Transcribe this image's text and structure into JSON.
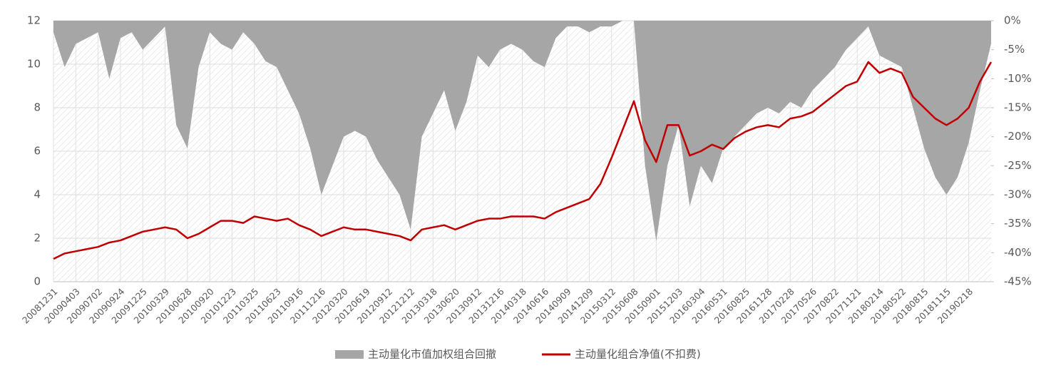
{
  "chart_data": {
    "type": "line_area",
    "categories": [
      "20081231",
      null,
      "20090403",
      null,
      "20090702",
      null,
      "20090924",
      null,
      "20091225",
      null,
      "20100329",
      null,
      "20100628",
      null,
      "20100920",
      null,
      "20101223",
      null,
      "20110325",
      null,
      "20110623",
      null,
      "20110916",
      null,
      "20111216",
      null,
      "20120320",
      null,
      "20120619",
      null,
      "20120912",
      null,
      "20121212",
      null,
      "20130318",
      null,
      "20130620",
      null,
      "20130912",
      null,
      "20131216",
      null,
      "20140318",
      null,
      "20140616",
      null,
      "20140909",
      null,
      "20141209",
      null,
      "20150312",
      null,
      "20150608",
      null,
      "20150901",
      null,
      "20151203",
      null,
      "20160304",
      null,
      "20160531",
      null,
      "20160825",
      null,
      "20161128",
      null,
      "20170228",
      null,
      "20170526",
      null,
      "20170822",
      null,
      "20171121",
      null,
      "20180214",
      null,
      "20180522",
      null,
      "20180815",
      null,
      "20181115",
      null,
      "20190218",
      null,
      null
    ],
    "series": [
      {
        "name": "主动量化市值加权组合回撤",
        "color": "#a6a6a6",
        "axis": "y2",
        "kind": "area",
        "values": [
          -2,
          -8,
          -4,
          -3,
          -2,
          -10,
          -3,
          -2,
          -5,
          -3,
          -1,
          -18,
          -22,
          -8,
          -2,
          -4,
          -5,
          -2,
          -4,
          -7,
          -8,
          -12,
          -16,
          -22,
          -30,
          -25,
          -20,
          -19,
          -20,
          -24,
          -27,
          -30,
          -36,
          -20,
          -16,
          -12,
          -19,
          -14,
          -6,
          -8,
          -5,
          -4,
          -5,
          -7,
          -8,
          -3,
          -1,
          -1,
          -2,
          -1,
          -1,
          0,
          0,
          -25,
          -38,
          -25,
          -18,
          -32,
          -25,
          -28,
          -22,
          -20,
          -18,
          -16,
          -15,
          -16,
          -14,
          -15,
          -12,
          -10,
          -8,
          -5,
          -3,
          -1,
          -6,
          -7,
          -8,
          -15,
          -22,
          -27,
          -30,
          -27,
          -21,
          -12,
          -4
        ]
      },
      {
        "name": "主动量化组合净值(不扣费)",
        "color": "#c00000",
        "kind": "line",
        "values": [
          1.05,
          1.3,
          1.4,
          1.5,
          1.6,
          1.8,
          1.9,
          2.1,
          2.3,
          2.4,
          2.5,
          2.4,
          2.0,
          2.2,
          2.5,
          2.8,
          2.8,
          2.7,
          3.0,
          2.9,
          2.8,
          2.9,
          2.6,
          2.4,
          2.1,
          2.3,
          2.5,
          2.4,
          2.4,
          2.3,
          2.2,
          2.1,
          1.9,
          2.4,
          2.5,
          2.6,
          2.4,
          2.6,
          2.8,
          2.9,
          2.9,
          3.0,
          3.0,
          3.0,
          2.9,
          3.2,
          3.4,
          3.6,
          3.8,
          4.5,
          5.7,
          7.0,
          8.3,
          6.5,
          5.5,
          7.2,
          7.2,
          5.8,
          6.0,
          6.3,
          6.1,
          6.6,
          6.9,
          7.1,
          7.2,
          7.1,
          7.5,
          7.6,
          7.8,
          8.2,
          8.6,
          9.0,
          9.2,
          10.1,
          9.6,
          9.8,
          9.6,
          8.5,
          8.0,
          7.5,
          7.2,
          7.5,
          8.0,
          9.2,
          10.1
        ]
      }
    ],
    "ylim": [
      0,
      12
    ],
    "yticks": [
      0,
      2,
      4,
      6,
      8,
      10,
      12
    ],
    "y2lim": [
      -45,
      0
    ],
    "y2ticks": [
      {
        "value": 0,
        "label": "0%"
      },
      {
        "value": -5,
        "label": "-5%"
      },
      {
        "value": -10,
        "label": "-10%"
      },
      {
        "value": -15,
        "label": "-15%"
      },
      {
        "value": -20,
        "label": "-20%"
      },
      {
        "value": -25,
        "label": "-25%"
      },
      {
        "value": -30,
        "label": "-30%"
      },
      {
        "value": -35,
        "label": "-35%"
      },
      {
        "value": -40,
        "label": "-40%"
      },
      {
        "value": -45,
        "label": "-45%"
      }
    ],
    "grid": true,
    "legend": "bottom"
  }
}
